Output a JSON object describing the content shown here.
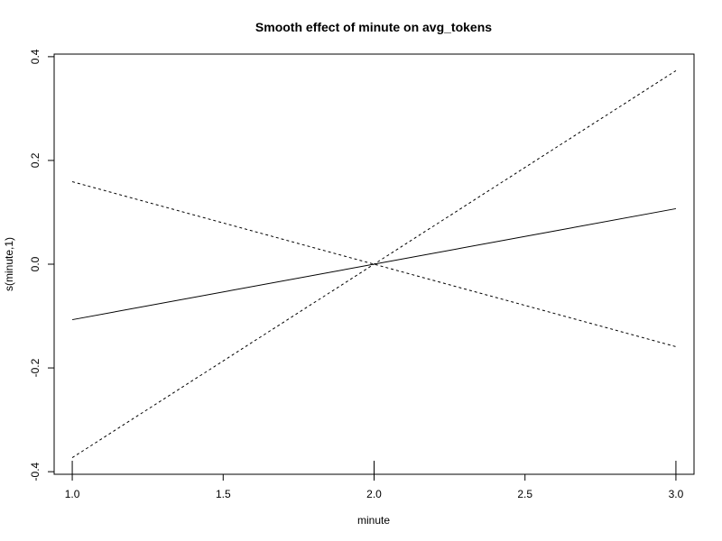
{
  "chart_data": {
    "type": "line",
    "title": "Smooth effect of minute on avg_tokens",
    "xlabel": "minute",
    "ylabel": "s(minute,1)",
    "xlim": [
      0.94,
      3.06
    ],
    "ylim": [
      -0.405,
      0.405
    ],
    "x_ticks": [
      "1.0",
      "1.5",
      "2.0",
      "2.5",
      "3.0"
    ],
    "y_ticks": [
      "-0.4",
      "-0.2",
      "0.0",
      "0.2",
      "0.4"
    ],
    "grid": false,
    "rug": [
      1.0,
      2.0,
      3.0
    ],
    "series": [
      {
        "style": "solid",
        "x": [
          1.0,
          3.0
        ],
        "y": [
          -0.107,
          0.107
        ]
      },
      {
        "style": "dashed",
        "x": [
          1.0,
          2.0,
          3.0
        ],
        "y": [
          -0.373,
          0.0,
          0.373
        ]
      },
      {
        "style": "dashed",
        "x": [
          1.0,
          2.0,
          3.0
        ],
        "y": [
          0.159,
          0.0,
          -0.159
        ]
      }
    ]
  }
}
